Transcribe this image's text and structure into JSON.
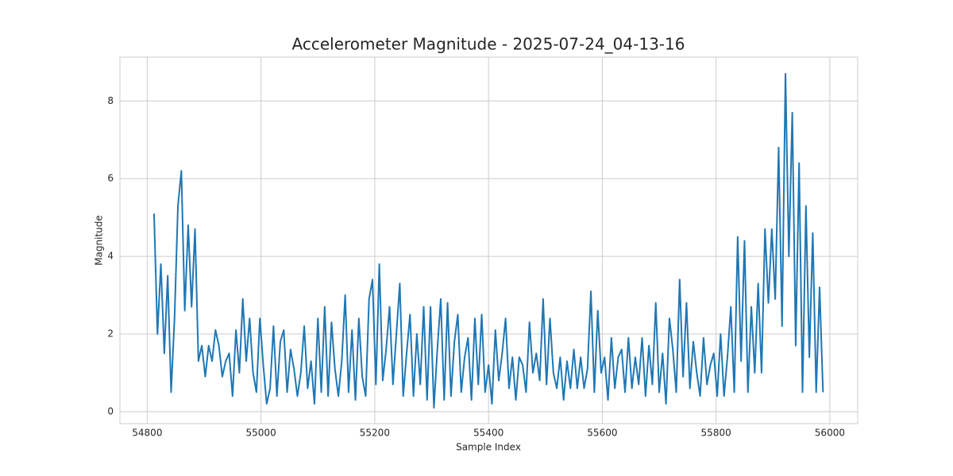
{
  "chart_data": {
    "type": "line",
    "title": "Accelerometer Magnitude - 2025-07-24_04-13-16",
    "x_label": "Sample Index",
    "y_label": "Magnitude",
    "xlim": [
      54752,
      56049
    ],
    "ylim": [
      -0.31,
      9.13
    ],
    "xticks": [
      54800,
      55000,
      55200,
      55400,
      55600,
      55800,
      56000
    ],
    "yticks": [
      0,
      2,
      4,
      6,
      8
    ],
    "grid": true,
    "x": [
      54812,
      54818,
      54824,
      54830,
      54836,
      54842,
      54848,
      54854,
      54860,
      54866,
      54872,
      54878,
      54884,
      54890,
      54896,
      54902,
      54908,
      54914,
      54920,
      54926,
      54932,
      54938,
      54944,
      54950,
      54956,
      54962,
      54968,
      54974,
      54980,
      54986,
      54992,
      54998,
      55004,
      55010,
      55016,
      55022,
      55028,
      55034,
      55040,
      55046,
      55052,
      55058,
      55064,
      55070,
      55076,
      55082,
      55088,
      55094,
      55100,
      55106,
      55112,
      55118,
      55124,
      55130,
      55136,
      55142,
      55148,
      55154,
      55160,
      55166,
      55172,
      55178,
      55184,
      55190,
      55196,
      55202,
      55208,
      55214,
      55220,
      55226,
      55232,
      55238,
      55244,
      55250,
      55256,
      55262,
      55268,
      55274,
      55280,
      55286,
      55292,
      55298,
      55304,
      55310,
      55316,
      55322,
      55328,
      55334,
      55340,
      55346,
      55352,
      55358,
      55364,
      55370,
      55376,
      55382,
      55388,
      55394,
      55400,
      55406,
      55412,
      55418,
      55424,
      55430,
      55436,
      55442,
      55448,
      55454,
      55460,
      55466,
      55472,
      55478,
      55484,
      55490,
      55496,
      55502,
      55508,
      55514,
      55520,
      55526,
      55532,
      55538,
      55544,
      55550,
      55556,
      55562,
      55568,
      55574,
      55580,
      55586,
      55592,
      55598,
      55604,
      55610,
      55616,
      55622,
      55628,
      55634,
      55640,
      55646,
      55652,
      55658,
      55664,
      55670,
      55676,
      55682,
      55688,
      55694,
      55700,
      55706,
      55712,
      55718,
      55724,
      55730,
      55736,
      55742,
      55748,
      55754,
      55760,
      55766,
      55772,
      55778,
      55784,
      55790,
      55796,
      55802,
      55808,
      55814,
      55820,
      55826,
      55832,
      55838,
      55844,
      55850,
      55856,
      55862,
      55868,
      55874,
      55880,
      55886,
      55892,
      55898,
      55904,
      55910,
      55916,
      55922,
      55928,
      55934,
      55940,
      55946,
      55952,
      55958,
      55964,
      55970,
      55976,
      55982,
      55988
    ],
    "series": [
      {
        "color": "#1f77b4",
        "values": [
          5.1,
          2.0,
          3.8,
          1.5,
          3.5,
          0.5,
          2.4,
          5.3,
          6.2,
          2.6,
          4.8,
          2.7,
          4.7,
          1.3,
          1.7,
          0.9,
          1.7,
          1.3,
          2.1,
          1.7,
          0.9,
          1.3,
          1.5,
          0.4,
          2.1,
          1.0,
          2.9,
          1.3,
          2.4,
          1.0,
          0.5,
          2.4,
          1.2,
          0.2,
          0.6,
          2.2,
          0.4,
          1.8,
          2.1,
          0.5,
          1.6,
          1.1,
          0.4,
          1.0,
          2.2,
          0.6,
          1.3,
          0.2,
          2.4,
          0.5,
          2.7,
          0.4,
          2.3,
          1.1,
          0.4,
          1.3,
          3.0,
          0.5,
          2.1,
          0.3,
          2.4,
          0.9,
          0.4,
          2.9,
          3.4,
          0.7,
          3.8,
          0.8,
          1.6,
          2.7,
          0.7,
          2.0,
          3.3,
          0.4,
          1.5,
          2.5,
          0.4,
          2.0,
          0.7,
          2.7,
          0.3,
          2.7,
          0.1,
          1.6,
          2.9,
          0.3,
          2.8,
          0.4,
          1.8,
          2.5,
          0.5,
          1.4,
          1.9,
          0.3,
          2.4,
          0.7,
          2.5,
          0.5,
          1.2,
          0.2,
          2.1,
          0.8,
          1.5,
          2.4,
          0.6,
          1.4,
          0.3,
          1.4,
          1.2,
          0.5,
          2.3,
          1.0,
          1.5,
          0.8,
          2.9,
          0.7,
          2.4,
          1.0,
          0.6,
          1.4,
          0.3,
          1.3,
          0.6,
          1.6,
          0.6,
          1.4,
          0.6,
          1.1,
          3.1,
          0.5,
          2.6,
          1.0,
          1.4,
          0.3,
          1.9,
          0.6,
          1.4,
          1.6,
          0.5,
          1.9,
          0.6,
          1.4,
          0.7,
          1.9,
          0.4,
          1.7,
          0.7,
          2.8,
          0.5,
          1.5,
          0.2,
          2.4,
          1.6,
          0.5,
          3.4,
          0.9,
          2.8,
          0.6,
          1.8,
          1.0,
          0.4,
          1.9,
          0.7,
          1.2,
          1.5,
          0.4,
          2.0,
          0.4,
          1.4,
          2.7,
          0.5,
          4.5,
          1.3,
          4.4,
          0.5,
          2.7,
          1.0,
          3.3,
          1.0,
          4.7,
          2.8,
          4.7,
          2.9,
          6.8,
          2.2,
          8.7,
          4.0,
          7.7,
          1.7,
          6.4,
          0.5,
          5.3,
          1.4,
          4.6,
          0.5,
          3.2,
          0.5
        ]
      }
    ]
  }
}
